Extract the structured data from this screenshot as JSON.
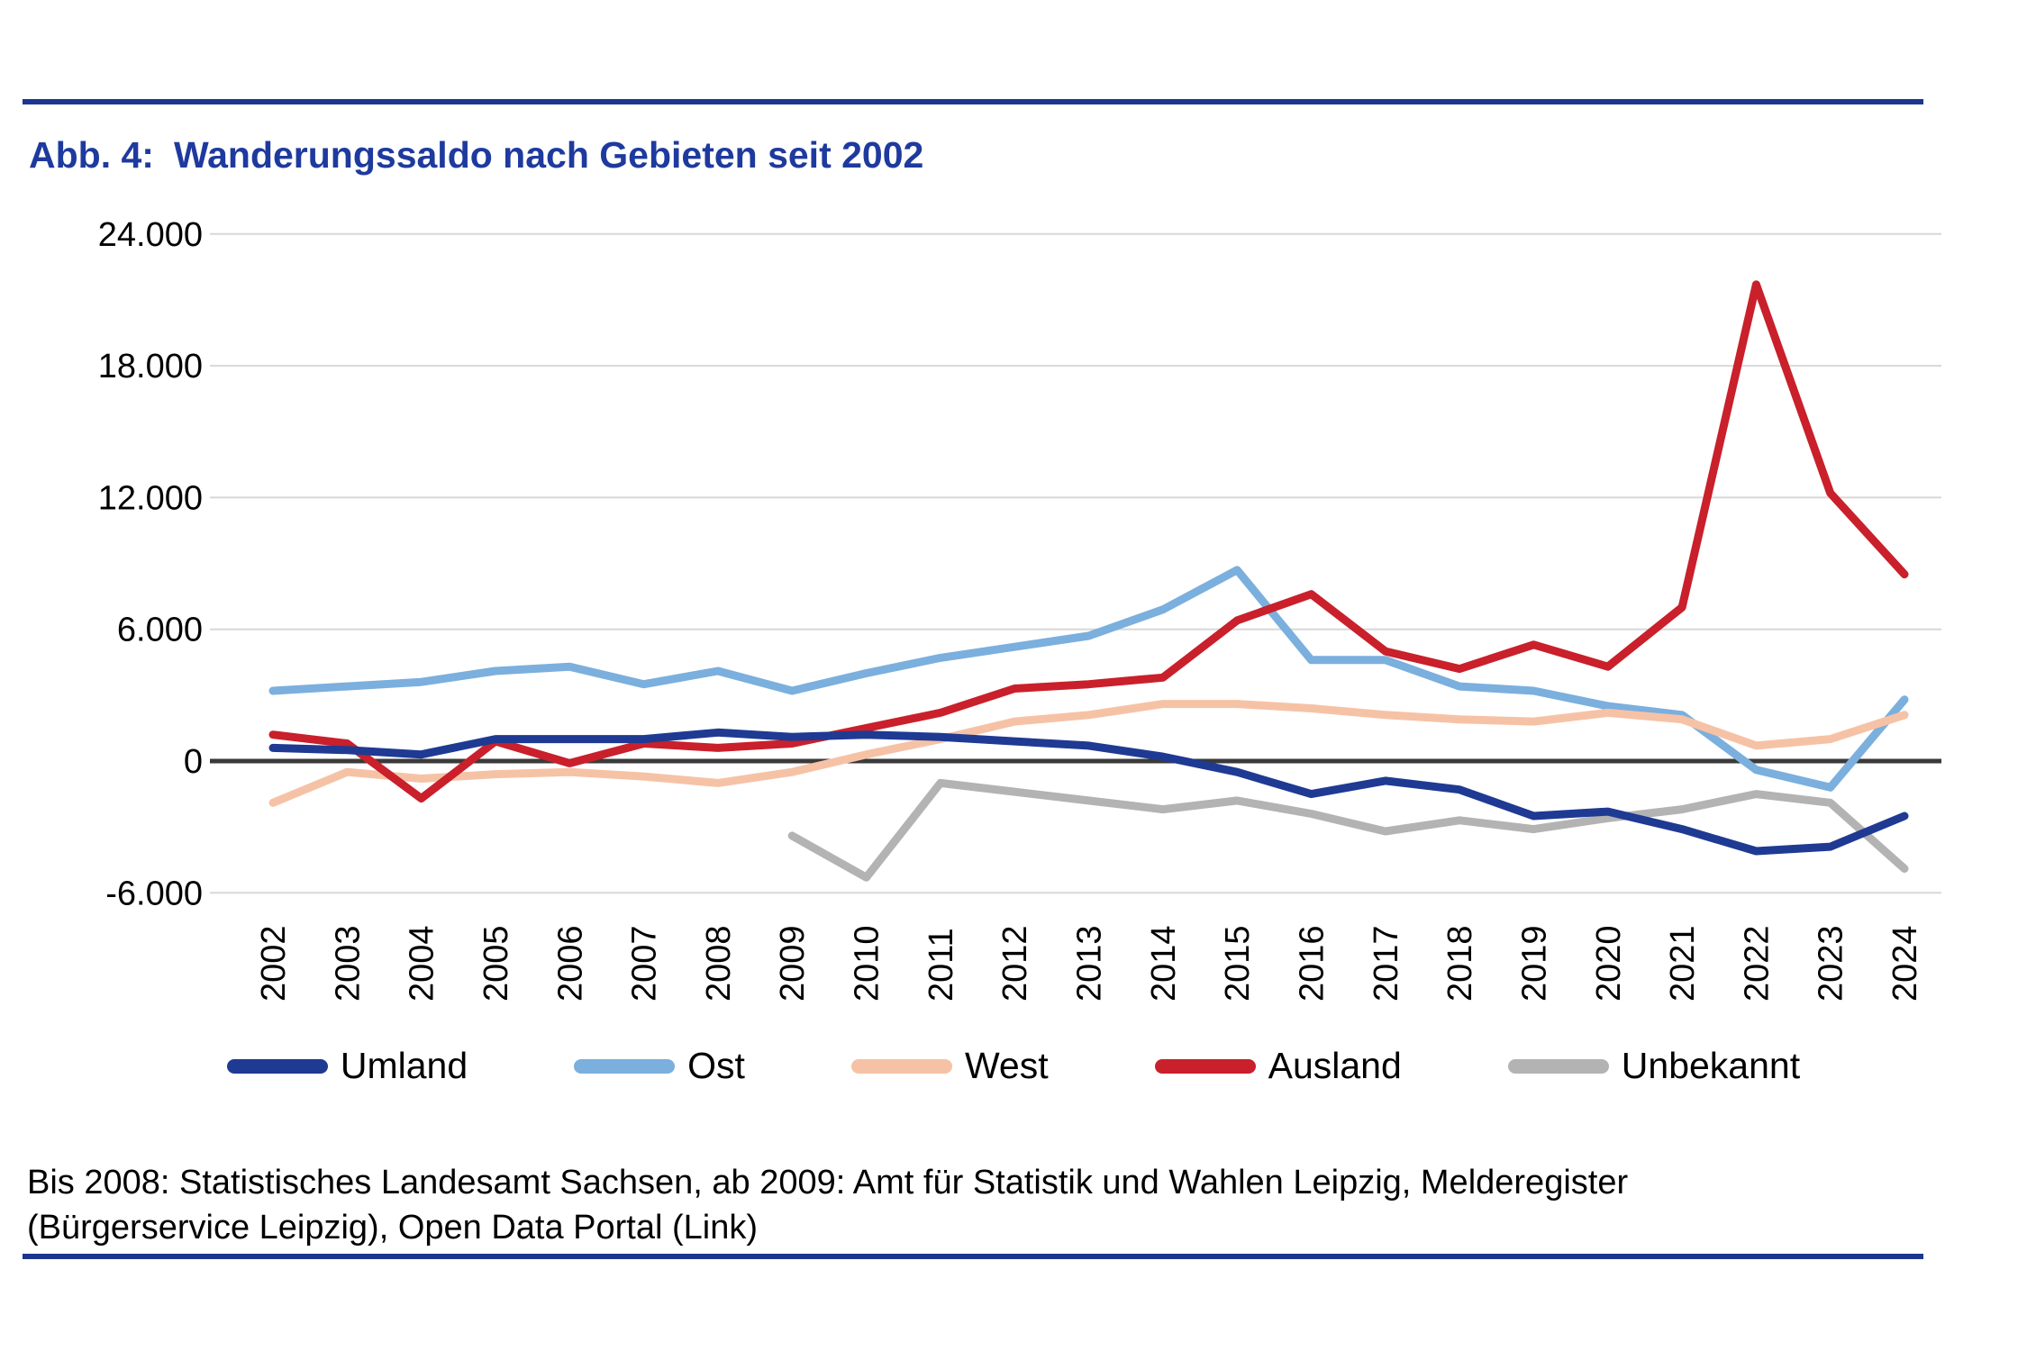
{
  "header": {
    "title_prefix": "Abb. 4:",
    "title_main": "Wanderungssaldo nach Gebieten seit 2002"
  },
  "footer": {
    "line1": "Bis 2008: Statistisches Landesamt Sachsen, ab 2009: Amt für Statistik und Wahlen Leipzig, Melderegister",
    "line2": "(Bürgerservice Leipzig), Open Data Portal (Link)"
  },
  "colors": {
    "accent_navy_rule": "#1c3690",
    "title_blue": "#1e3a9e",
    "gridline": "#d8d8d8",
    "zero_line": "#3a3a3a"
  },
  "chart_data": {
    "type": "line",
    "title": "Abb. 4: Wanderungssaldo nach Gebieten seit 2002",
    "xlabel": "",
    "ylabel": "",
    "x_tick_labels": [
      "2002",
      "2003",
      "2004",
      "2005",
      "2006",
      "2007",
      "2008",
      "2009",
      "2010",
      "2011",
      "2012",
      "2013",
      "2014",
      "2015",
      "2016",
      "2017",
      "2018",
      "2019",
      "2020",
      "2021",
      "2022",
      "2023",
      "2024"
    ],
    "y_ticks": [
      {
        "value": 24000,
        "label": "24.000"
      },
      {
        "value": 18000,
        "label": "18.000"
      },
      {
        "value": 12000,
        "label": "12.000"
      },
      {
        "value": 6000,
        "label": "6.000"
      },
      {
        "value": 0,
        "label": "0"
      },
      {
        "value": -6000,
        "label": "-6.000"
      }
    ],
    "ylim": [
      -7000,
      26000
    ],
    "grid": true,
    "zero_line": true,
    "legend_position": "bottom",
    "series": [
      {
        "name": "Umland",
        "color": "#1f3a93",
        "values": [
          600,
          500,
          300,
          1000,
          1000,
          1000,
          1300,
          1100,
          1200,
          1100,
          900,
          700,
          200,
          -500,
          -1500,
          -900,
          -1300,
          -2500,
          -2300,
          -3100,
          -4100,
          -3900,
          -2500
        ]
      },
      {
        "name": "Ost",
        "color": "#7bafdd",
        "values": [
          3200,
          3400,
          3600,
          4100,
          4300,
          3500,
          4100,
          3200,
          4000,
          4700,
          5200,
          5700,
          6900,
          8700,
          4600,
          4600,
          3400,
          3200,
          2500,
          2100,
          -400,
          -1200,
          2800
        ]
      },
      {
        "name": "West",
        "color": "#f6c2a6",
        "values": [
          -1900,
          -500,
          -800,
          -600,
          -500,
          -700,
          -1000,
          -500,
          300,
          1000,
          1800,
          2100,
          2600,
          2600,
          2400,
          2100,
          1900,
          1800,
          2200,
          1900,
          700,
          1000,
          2100
        ]
      },
      {
        "name": "Ausland",
        "color": "#c9202b",
        "values": [
          1200,
          800,
          -1700,
          900,
          -100,
          800,
          600,
          800,
          1500,
          2200,
          3300,
          3500,
          3800,
          6400,
          7600,
          5000,
          4200,
          5300,
          4300,
          7000,
          21700,
          12200,
          8500
        ]
      },
      {
        "name": "Unbekannt",
        "color": "#b3b3b3",
        "values": [
          null,
          null,
          null,
          null,
          null,
          null,
          null,
          -3400,
          -5300,
          -1000,
          -1400,
          -1800,
          -2200,
          -1800,
          -2400,
          -3200,
          -2700,
          -3100,
          -2600,
          -2200,
          -1500,
          -1900,
          -4900
        ]
      }
    ]
  }
}
